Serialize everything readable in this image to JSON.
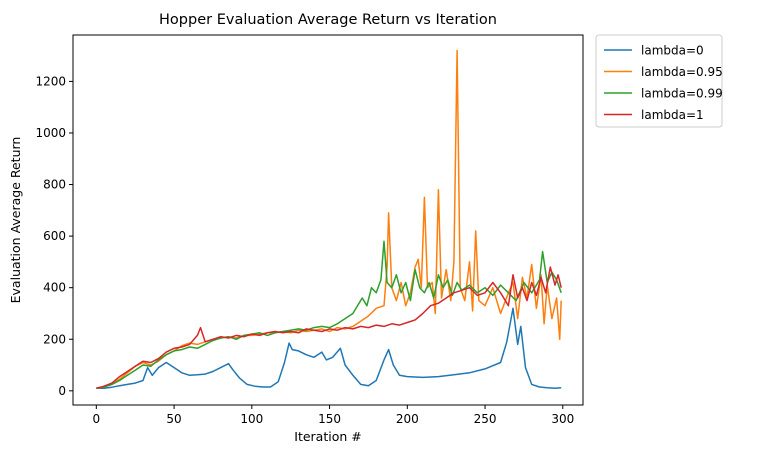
{
  "chart_data": {
    "type": "line",
    "title": "Hopper Evaluation Average Return vs Iteration",
    "xlabel": "Iteration #",
    "ylabel": "Evaluation Average Return",
    "xlim": [
      -15,
      313
    ],
    "ylim": [
      -55,
      1380
    ],
    "xticks": [
      0,
      50,
      100,
      150,
      200,
      250,
      300
    ],
    "yticks": [
      0,
      200,
      400,
      600,
      800,
      1000,
      1200
    ],
    "grid": false,
    "legend_position": "outside-top-right",
    "series": [
      {
        "name": "lambda=0",
        "color": "#1f77b4",
        "points": [
          [
            0,
            10
          ],
          [
            5,
            10
          ],
          [
            10,
            14
          ],
          [
            15,
            20
          ],
          [
            20,
            25
          ],
          [
            25,
            30
          ],
          [
            30,
            40
          ],
          [
            33,
            90
          ],
          [
            36,
            60
          ],
          [
            40,
            90
          ],
          [
            45,
            110
          ],
          [
            50,
            90
          ],
          [
            55,
            70
          ],
          [
            60,
            60
          ],
          [
            65,
            62
          ],
          [
            70,
            65
          ],
          [
            75,
            75
          ],
          [
            80,
            90
          ],
          [
            85,
            105
          ],
          [
            88,
            80
          ],
          [
            92,
            50
          ],
          [
            97,
            25
          ],
          [
            102,
            18
          ],
          [
            107,
            15
          ],
          [
            112,
            15
          ],
          [
            117,
            35
          ],
          [
            121,
            110
          ],
          [
            124,
            185
          ],
          [
            126,
            160
          ],
          [
            130,
            155
          ],
          [
            135,
            140
          ],
          [
            140,
            130
          ],
          [
            145,
            150
          ],
          [
            148,
            120
          ],
          [
            152,
            130
          ],
          [
            157,
            165
          ],
          [
            160,
            100
          ],
          [
            165,
            60
          ],
          [
            170,
            25
          ],
          [
            175,
            20
          ],
          [
            180,
            40
          ],
          [
            185,
            120
          ],
          [
            188,
            160
          ],
          [
            191,
            100
          ],
          [
            195,
            60
          ],
          [
            200,
            55
          ],
          [
            210,
            52
          ],
          [
            220,
            55
          ],
          [
            230,
            62
          ],
          [
            240,
            70
          ],
          [
            250,
            85
          ],
          [
            260,
            110
          ],
          [
            264,
            190
          ],
          [
            268,
            320
          ],
          [
            271,
            180
          ],
          [
            273,
            250
          ],
          [
            276,
            90
          ],
          [
            280,
            25
          ],
          [
            285,
            15
          ],
          [
            290,
            12
          ],
          [
            295,
            10
          ],
          [
            299,
            12
          ]
        ]
      },
      {
        "name": "lambda=0.95",
        "color": "#ff7f0e",
        "points": [
          [
            0,
            10
          ],
          [
            5,
            15
          ],
          [
            10,
            28
          ],
          [
            15,
            45
          ],
          [
            20,
            70
          ],
          [
            25,
            95
          ],
          [
            30,
            110
          ],
          [
            35,
            100
          ],
          [
            40,
            115
          ],
          [
            45,
            140
          ],
          [
            50,
            155
          ],
          [
            55,
            175
          ],
          [
            60,
            185
          ],
          [
            65,
            180
          ],
          [
            70,
            190
          ],
          [
            75,
            200
          ],
          [
            80,
            205
          ],
          [
            85,
            210
          ],
          [
            90,
            205
          ],
          [
            95,
            215
          ],
          [
            100,
            215
          ],
          [
            105,
            220
          ],
          [
            110,
            225
          ],
          [
            115,
            225
          ],
          [
            120,
            230
          ],
          [
            125,
            225
          ],
          [
            130,
            235
          ],
          [
            135,
            230
          ],
          [
            140,
            235
          ],
          [
            145,
            240
          ],
          [
            150,
            230
          ],
          [
            155,
            245
          ],
          [
            160,
            240
          ],
          [
            165,
            250
          ],
          [
            170,
            270
          ],
          [
            175,
            290
          ],
          [
            180,
            320
          ],
          [
            185,
            330
          ],
          [
            187,
            480
          ],
          [
            188,
            690
          ],
          [
            190,
            400
          ],
          [
            193,
            350
          ],
          [
            196,
            420
          ],
          [
            199,
            330
          ],
          [
            202,
            380
          ],
          [
            205,
            480
          ],
          [
            207,
            510
          ],
          [
            209,
            400
          ],
          [
            211,
            750
          ],
          [
            213,
            400
          ],
          [
            216,
            420
          ],
          [
            218,
            300
          ],
          [
            220,
            780
          ],
          [
            222,
            360
          ],
          [
            225,
            470
          ],
          [
            228,
            350
          ],
          [
            230,
            500
          ],
          [
            232,
            1320
          ],
          [
            234,
            400
          ],
          [
            237,
            350
          ],
          [
            240,
            500
          ],
          [
            242,
            310
          ],
          [
            244,
            620
          ],
          [
            246,
            350
          ],
          [
            250,
            330
          ],
          [
            255,
            400
          ],
          [
            260,
            300
          ],
          [
            265,
            380
          ],
          [
            268,
            420
          ],
          [
            271,
            280
          ],
          [
            274,
            440
          ],
          [
            277,
            360
          ],
          [
            280,
            490
          ],
          [
            283,
            320
          ],
          [
            286,
            450
          ],
          [
            288,
            260
          ],
          [
            290,
            410
          ],
          [
            293,
            280
          ],
          [
            296,
            360
          ],
          [
            298,
            200
          ],
          [
            299,
            350
          ]
        ]
      },
      {
        "name": "lambda=0.99",
        "color": "#2ca02c",
        "points": [
          [
            0,
            10
          ],
          [
            5,
            15
          ],
          [
            10,
            25
          ],
          [
            15,
            40
          ],
          [
            20,
            60
          ],
          [
            25,
            80
          ],
          [
            30,
            100
          ],
          [
            35,
            95
          ],
          [
            40,
            120
          ],
          [
            45,
            140
          ],
          [
            50,
            155
          ],
          [
            55,
            160
          ],
          [
            60,
            170
          ],
          [
            65,
            165
          ],
          [
            70,
            180
          ],
          [
            75,
            195
          ],
          [
            80,
            205
          ],
          [
            85,
            210
          ],
          [
            90,
            200
          ],
          [
            95,
            215
          ],
          [
            100,
            220
          ],
          [
            105,
            225
          ],
          [
            110,
            215
          ],
          [
            115,
            225
          ],
          [
            120,
            230
          ],
          [
            125,
            235
          ],
          [
            130,
            240
          ],
          [
            135,
            235
          ],
          [
            140,
            245
          ],
          [
            145,
            250
          ],
          [
            150,
            245
          ],
          [
            155,
            260
          ],
          [
            160,
            280
          ],
          [
            165,
            300
          ],
          [
            168,
            330
          ],
          [
            171,
            360
          ],
          [
            174,
            330
          ],
          [
            177,
            400
          ],
          [
            180,
            380
          ],
          [
            183,
            430
          ],
          [
            185,
            580
          ],
          [
            187,
            420
          ],
          [
            190,
            400
          ],
          [
            193,
            450
          ],
          [
            196,
            380
          ],
          [
            199,
            420
          ],
          [
            202,
            350
          ],
          [
            205,
            470
          ],
          [
            208,
            400
          ],
          [
            211,
            380
          ],
          [
            214,
            420
          ],
          [
            217,
            360
          ],
          [
            220,
            450
          ],
          [
            223,
            400
          ],
          [
            226,
            430
          ],
          [
            229,
            370
          ],
          [
            232,
            420
          ],
          [
            235,
            390
          ],
          [
            240,
            410
          ],
          [
            245,
            380
          ],
          [
            250,
            400
          ],
          [
            255,
            370
          ],
          [
            260,
            410
          ],
          [
            265,
            380
          ],
          [
            270,
            350
          ],
          [
            275,
            420
          ],
          [
            280,
            380
          ],
          [
            285,
            430
          ],
          [
            287,
            540
          ],
          [
            290,
            420
          ],
          [
            293,
            460
          ],
          [
            296,
            430
          ],
          [
            299,
            380
          ]
        ]
      },
      {
        "name": "lambda=1",
        "color": "#d62728",
        "points": [
          [
            0,
            10
          ],
          [
            5,
            18
          ],
          [
            10,
            30
          ],
          [
            15,
            55
          ],
          [
            20,
            75
          ],
          [
            25,
            95
          ],
          [
            30,
            115
          ],
          [
            35,
            110
          ],
          [
            40,
            125
          ],
          [
            45,
            150
          ],
          [
            50,
            165
          ],
          [
            55,
            170
          ],
          [
            60,
            180
          ],
          [
            65,
            215
          ],
          [
            67,
            245
          ],
          [
            70,
            190
          ],
          [
            75,
            200
          ],
          [
            80,
            210
          ],
          [
            85,
            205
          ],
          [
            90,
            215
          ],
          [
            95,
            210
          ],
          [
            100,
            220
          ],
          [
            105,
            215
          ],
          [
            110,
            225
          ],
          [
            115,
            230
          ],
          [
            120,
            225
          ],
          [
            125,
            230
          ],
          [
            130,
            225
          ],
          [
            135,
            240
          ],
          [
            140,
            235
          ],
          [
            145,
            230
          ],
          [
            150,
            240
          ],
          [
            155,
            235
          ],
          [
            160,
            245
          ],
          [
            165,
            240
          ],
          [
            170,
            250
          ],
          [
            175,
            245
          ],
          [
            180,
            255
          ],
          [
            185,
            250
          ],
          [
            190,
            260
          ],
          [
            195,
            255
          ],
          [
            200,
            265
          ],
          [
            205,
            275
          ],
          [
            210,
            300
          ],
          [
            215,
            330
          ],
          [
            220,
            340
          ],
          [
            225,
            360
          ],
          [
            230,
            380
          ],
          [
            235,
            390
          ],
          [
            240,
            400
          ],
          [
            245,
            370
          ],
          [
            250,
            380
          ],
          [
            255,
            420
          ],
          [
            260,
            380
          ],
          [
            265,
            330
          ],
          [
            268,
            450
          ],
          [
            271,
            360
          ],
          [
            274,
            400
          ],
          [
            277,
            350
          ],
          [
            280,
            420
          ],
          [
            283,
            370
          ],
          [
            286,
            440
          ],
          [
            289,
            380
          ],
          [
            292,
            480
          ],
          [
            295,
            410
          ],
          [
            297,
            450
          ],
          [
            299,
            400
          ]
        ]
      }
    ]
  }
}
